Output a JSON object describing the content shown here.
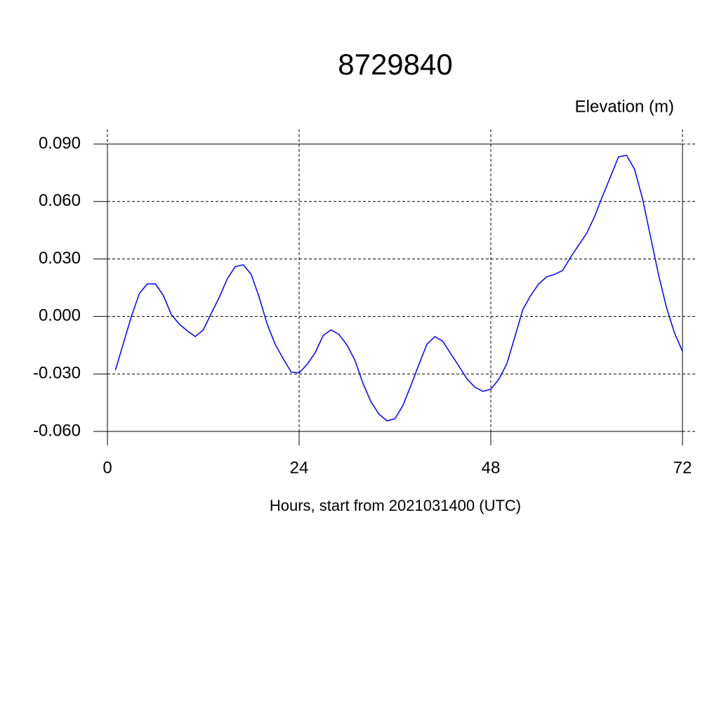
{
  "chart_data": {
    "type": "line",
    "title": "8729840",
    "subtitle": "Elevation (m)",
    "x_label": "Hours, start from 2021031400 (UTC)",
    "x": [
      1,
      2,
      3,
      4,
      5,
      6,
      7,
      8,
      9,
      10,
      11,
      12,
      13,
      14,
      15,
      16,
      17,
      18,
      19,
      20,
      21,
      22,
      23,
      24,
      25,
      26,
      27,
      28,
      29,
      30,
      31,
      32,
      33,
      34,
      35,
      36,
      37,
      38,
      39,
      40,
      41,
      42,
      43,
      44,
      45,
      46,
      47,
      48,
      49,
      50,
      51,
      52,
      53,
      54,
      55,
      56,
      57,
      58,
      59,
      60,
      61,
      62,
      63,
      64,
      65,
      66,
      67,
      68,
      69,
      70,
      71,
      72
    ],
    "series": [
      {
        "name": "Elevation",
        "color": "#0000ff",
        "values": [
          -0.028,
          -0.014,
          0.0,
          0.012,
          0.017,
          0.017,
          0.011,
          0.001,
          -0.004,
          -0.0075,
          -0.0105,
          -0.007,
          0.0016,
          0.01,
          0.0196,
          0.026,
          0.027,
          0.022,
          0.01,
          -0.004,
          -0.0145,
          -0.022,
          -0.029,
          -0.0295,
          -0.025,
          -0.019,
          -0.01,
          -0.007,
          -0.0094,
          -0.015,
          -0.023,
          -0.035,
          -0.0446,
          -0.051,
          -0.0545,
          -0.0534,
          -0.0464,
          -0.036,
          -0.025,
          -0.0145,
          -0.0105,
          -0.013,
          -0.0196,
          -0.0259,
          -0.0325,
          -0.0369,
          -0.0391,
          -0.038,
          -0.0328,
          -0.0248,
          -0.0108,
          0.0035,
          0.011,
          0.017,
          0.0207,
          0.022,
          0.024,
          0.031,
          0.0372,
          0.0434,
          0.0522,
          0.0629,
          0.0731,
          0.0834,
          0.0841,
          0.0768,
          0.0614,
          0.0416,
          0.0218,
          0.0046,
          -0.0086,
          -0.0182
        ]
      }
    ],
    "xlim": [
      0,
      72
    ],
    "xticks": [
      0,
      24,
      48,
      72
    ],
    "ylim": [
      -0.06,
      0.09
    ],
    "yticks": [
      {
        "value": -0.06,
        "label": "-0.060"
      },
      {
        "value": -0.03,
        "label": "-0.030"
      },
      {
        "value": 0,
        "label": "0.000"
      },
      {
        "value": 0.03,
        "label": "0.030"
      },
      {
        "value": 0.06,
        "label": "0.060"
      },
      {
        "value": 0.09,
        "label": "0.090"
      }
    ],
    "grid": true
  }
}
